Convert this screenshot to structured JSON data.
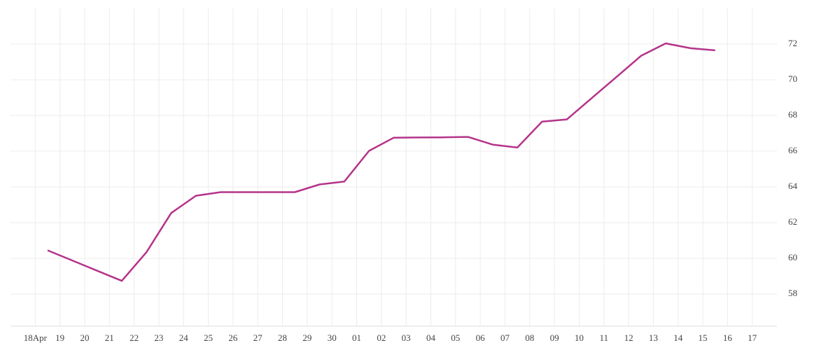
{
  "chart_data": {
    "type": "line",
    "categories": [
      "18Apr",
      "19",
      "20",
      "21",
      "22",
      "23",
      "24",
      "25",
      "26",
      "27",
      "28",
      "29",
      "30",
      "01",
      "02",
      "03",
      "04",
      "05",
      "06",
      "07",
      "08",
      "09",
      "10",
      "11",
      "12",
      "13",
      "14",
      "15",
      "16",
      "17"
    ],
    "series": [
      {
        "color": "#b5338a",
        "values": [
          60.45,
          59.88,
          59.31,
          58.74,
          60.35,
          62.54,
          63.51,
          63.71,
          63.71,
          63.71,
          63.71,
          64.14,
          64.3,
          66.02,
          66.76,
          66.77,
          66.78,
          66.8,
          66.37,
          66.21,
          67.66,
          67.78,
          68.97,
          70.15,
          71.34,
          72.04,
          71.77,
          71.65,
          null,
          null
        ]
      }
    ],
    "ylim": [
      56.2,
      74
    ],
    "yticks": [
      58,
      60,
      62,
      64,
      66,
      68,
      70,
      72
    ],
    "grid": true
  }
}
